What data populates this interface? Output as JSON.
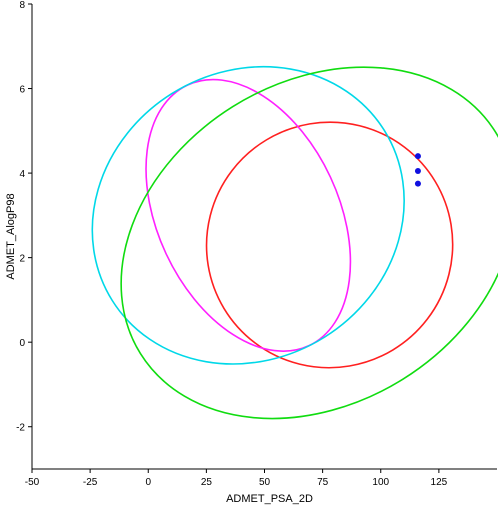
{
  "chart_data": {
    "type": "scatter",
    "xlabel": "ADMET_PSA_2D",
    "ylabel": "ADMET_AlogP98",
    "xlim": [
      -50,
      150
    ],
    "ylim": [
      -3,
      8
    ],
    "x_ticks": [
      -50,
      -25,
      0,
      25,
      50,
      75,
      100,
      125
    ],
    "y_ticks": [
      -2,
      0,
      2,
      4,
      6,
      8
    ],
    "grid": false,
    "ellipses": [
      {
        "color": "#ff2020",
        "center": [
          78,
          2.3
        ],
        "semi_axes": [
          53,
          2.9
        ],
        "angle_deg": -31
      },
      {
        "color": "#ff20ff",
        "center": [
          43,
          3.0
        ],
        "semi_axes": [
          39,
          3.4
        ],
        "angle_deg": -25
      },
      {
        "color": "#00d8e8",
        "center": [
          43,
          3.0
        ],
        "semi_axes": [
          69,
          3.4
        ],
        "angle_deg": -32
      },
      {
        "color": "#10dc10",
        "center": [
          73,
          2.35
        ],
        "semi_axes": [
          90,
          3.8
        ],
        "angle_deg": -32
      }
    ],
    "points": {
      "color": "#1010e0",
      "x": [
        116,
        116,
        116
      ],
      "y": [
        4.4,
        4.05,
        3.75
      ]
    }
  }
}
